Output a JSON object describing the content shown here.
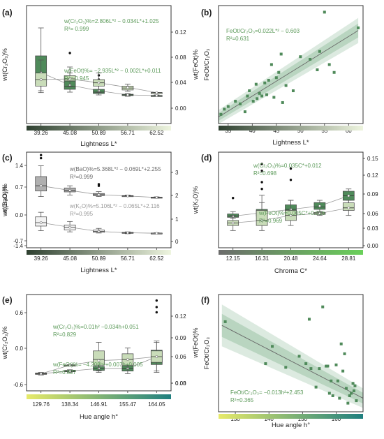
{
  "colors": {
    "dark_green": "#4f8a5a",
    "light_green": "#c9dcb9",
    "grey_box": "#b0b0b0",
    "white_box": "#f2f2f2",
    "band": "#9cc2a5",
    "grad_dark": "#2e4030",
    "grad_light": "#eef5df",
    "grad_green": "#6ad05a",
    "grad_yellow": "#e7ea6a",
    "grad_teal": "#1f7f7f",
    "text_green": "#5c9a5a",
    "text_grey": "#6a6a6a"
  },
  "chart_data": [
    {
      "panel": "(a)",
      "type": "box",
      "categories": [
        "39.26",
        "45.08",
        "50.89",
        "56.71",
        "62.52"
      ],
      "xlabel": "Lightness L*",
      "ylabel_left": "wt(Cr₂O₃)%",
      "ylabel_right": "wt(FeOt)%",
      "yticks_right": [
        "0.12",
        "0.08",
        "0.04",
        "0.00"
      ],
      "colorbar": "dark-to-light",
      "annotations": [
        {
          "line1": "w(Cr₂O₃)%=2.806L*² − 0.034L*+1.025",
          "line2": "R²= 0.999"
        },
        {
          "line1": "w(FeOt)%= −2.935L*² − 0.002L*+0.011",
          "line2": "R²= 0.945"
        }
      ],
      "series": [
        {
          "name": "Cr2O3",
          "color": "dark_green",
          "boxes": [
            [
              0.05,
              0.1,
              0.17,
              0.3,
              0.5
            ],
            [
              0.04,
              0.06,
              0.08,
              0.12,
              0.22
            ],
            [
              0.02,
              0.03,
              0.04,
              0.06,
              0.09
            ],
            [
              0.01,
              0.015,
              0.02,
              0.025,
              0.03
            ],
            [
              0.01,
              0.012,
              0.014,
              0.016,
              0.02
            ]
          ],
          "means": [
            0.18,
            0.09,
            0.05,
            0.02,
            0.015
          ],
          "outliers": [
            [
              1,
              0.32
            ],
            [
              2,
              0.16
            ],
            [
              2,
              0.13
            ]
          ]
        },
        {
          "name": "FeOt",
          "color": "light_green",
          "boxes": [
            [
              0.02,
              0.03,
              0.04,
              0.05,
              0.07
            ],
            [
              0.03,
              0.038,
              0.041,
              0.046,
              0.05
            ],
            [
              0.02,
              0.03,
              0.035,
              0.04,
              0.05
            ],
            [
              0.022,
              0.024,
              0.027,
              0.03,
              0.033
            ],
            [
              0.019,
              0.019,
              0.02,
              0.02,
              0.02
            ]
          ],
          "means": [
            0.04,
            0.041,
            0.035,
            0.028,
            0.02
          ],
          "outliers": []
        }
      ]
    },
    {
      "panel": "(b)",
      "type": "scatter",
      "xlabel": "Lightness L*",
      "ylabel": "FeOt/Cr₂O₃",
      "xticks": [
        "35",
        "40",
        "45",
        "50",
        "55",
        "60"
      ],
      "annotation": {
        "line1": "FeOt/Cr₂O₃=0.022L*² − 0.603",
        "line2": "R²=0.631"
      },
      "x": [
        33.5,
        34.2,
        35.0,
        36.5,
        37.5,
        38.5,
        39.0,
        39.4,
        40.2,
        40.8,
        41.0,
        41.5,
        42.0,
        42.6,
        43.0,
        43.4,
        44.0,
        44.5,
        45.0,
        45.5,
        46.0,
        46.3,
        47.0,
        48.5,
        50.0,
        52.0,
        53.5,
        54.0,
        55.0,
        56.0,
        57.0,
        62.0
      ],
      "y": [
        0.12,
        0.16,
        0.18,
        0.22,
        0.2,
        0.14,
        0.26,
        0.3,
        0.22,
        0.35,
        0.24,
        0.28,
        0.26,
        0.36,
        0.27,
        0.38,
        0.5,
        0.25,
        0.4,
        0.44,
        0.58,
        0.21,
        0.34,
        0.3,
        0.56,
        0.54,
        0.46,
        0.6,
        0.9,
        0.5,
        0.44,
        0.78
      ],
      "fit": [
        [
          33.0,
          0.1
        ],
        [
          62.0,
          0.76
        ]
      ],
      "xlim": [
        33,
        63
      ],
      "ylim": [
        0.05,
        0.95
      ]
    },
    {
      "panel": "(c)",
      "type": "box",
      "categories": [
        "39.26",
        "45.08",
        "50.89",
        "56.71",
        "62.52"
      ],
      "xlabel": "Lightness L*",
      "ylabel_left": "wt(BaO)%",
      "ylabel_right": "wt(K₂O)%",
      "yticks_left": [
        "1.4",
        "0.7",
        "0.0",
        "-0.7",
        "-1.4"
      ],
      "yticks_right": [
        "3",
        "2",
        "1",
        "0"
      ],
      "colorbar": "dark-to-light",
      "annotations": [
        {
          "line1": "w(BaO)%=5.368L*² − 0.069L*+2.255",
          "line2": "R²=0.999"
        },
        {
          "line1": "w(K₂O)%=5.106L*² − 0.065L*+2.116",
          "line2": "R²=0.995"
        }
      ],
      "series": [
        {
          "name": "BaO",
          "color": "grey_box",
          "boxes": [
            [
              0.1,
              0.28,
              0.45,
              0.75,
              1.1
            ],
            [
              0.15,
              0.25,
              0.3,
              0.38,
              0.45
            ],
            [
              0.1,
              0.13,
              0.16,
              0.2,
              0.26
            ],
            [
              0.1,
              0.11,
              0.12,
              0.13,
              0.15
            ],
            [
              0.05,
              0.06,
              0.07,
              0.08,
              0.09
            ]
          ],
          "means": [
            0.45,
            0.3,
            0.16,
            0.12,
            0.07
          ],
          "outliers": [
            [
              0,
              1.45
            ],
            [
              0,
              1.35
            ],
            [
              2,
              0.5
            ],
            [
              2,
              0.45
            ]
          ]
        },
        {
          "name": "K2O",
          "color": "white_box",
          "boxes": [
            [
              0.15,
              0.35,
              0.5,
              0.75,
              0.95
            ],
            [
              0.1,
              0.18,
              0.3,
              0.4,
              0.55
            ],
            [
              0.05,
              0.08,
              0.12,
              0.18,
              0.25
            ],
            [
              0.02,
              0.04,
              0.06,
              0.08,
              0.1
            ],
            [
              0.02,
              0.03,
              0.04,
              0.05,
              0.06
            ]
          ],
          "means": [
            0.5,
            0.3,
            0.12,
            0.06,
            0.04
          ],
          "outliers": []
        }
      ]
    },
    {
      "panel": "(d)",
      "type": "box",
      "categories": [
        "12.15",
        "16.31",
        "20.48",
        "24.64",
        "28.81"
      ],
      "xlabel": "Chroma C*",
      "ylabel_left": "wt(Cr₂O₃)%",
      "ylabel_right": "wt(FeOt)%",
      "yticks_right": [
        "0.15",
        "0.12",
        "0.09",
        "0.06",
        "0.03",
        "0.00"
      ],
      "colorbar": "grey-to-green",
      "annotations": [
        {
          "line1": "w(Cr₂O₃)%=0.035C*+0.012",
          "line2": "R²=0.698"
        },
        {
          "line1": "w(FeOt)%=0.005C*+0.016",
          "line2": "R²=0.969"
        }
      ],
      "series": [
        {
          "name": "Cr2O3",
          "color": "dark_green",
          "boxes": [
            [
              0.02,
              0.025,
              0.03,
              0.04,
              0.05
            ],
            [
              0.02,
              0.03,
              0.04,
              0.06,
              0.09
            ],
            [
              0.03,
              0.04,
              0.06,
              0.08,
              0.1
            ],
            [
              0.05,
              0.06,
              0.07,
              0.09,
              0.1
            ],
            [
              0.08,
              0.1,
              0.12,
              0.14,
              0.15
            ]
          ],
          "means": [
            0.03,
            0.045,
            0.06,
            0.075,
            0.12
          ],
          "outliers": [
            [
              0,
              0.11
            ],
            [
              1,
              0.26
            ],
            [
              1,
              0.23
            ],
            [
              1,
              0.18
            ],
            [
              1,
              0.15
            ],
            [
              2,
              0.24
            ],
            [
              2,
              0.19
            ]
          ]
        },
        {
          "name": "FeOt",
          "color": "light_green",
          "boxes": [
            [
              0.01,
              0.02,
              0.025,
              0.03,
              0.04
            ],
            [
              0.01,
              0.02,
              0.03,
              0.05,
              0.08
            ],
            [
              0.02,
              0.03,
              0.04,
              0.05,
              0.07
            ],
            [
              0.04,
              0.042,
              0.044,
              0.046,
              0.048
            ],
            [
              0.04,
              0.05,
              0.055,
              0.065,
              0.07
            ]
          ],
          "means": [
            0.025,
            0.03,
            0.04,
            0.044,
            0.055
          ],
          "outliers": []
        }
      ]
    },
    {
      "panel": "(e)",
      "type": "box",
      "categories": [
        "129.76",
        "138.34",
        "146.91",
        "155.47",
        "164.05"
      ],
      "xlabel": "Hue angle h°",
      "ylabel_left": "wt(Cr₂O₃)%",
      "ylabel_right": "wt(FeOt)%",
      "yticks_left": [
        "0.6",
        "0.0",
        "-0.6"
      ],
      "yticks_right": [
        "0.12",
        "0.09",
        "0.06",
        "0.03",
        "0.00"
      ],
      "colorbar": "yellow-to-teal",
      "annotations": [
        {
          "line1": "w(Cr₂O₃)%=0.01h² −0.034h+0.051",
          "line2": "R²=0.829"
        },
        {
          "line1": "w(FeOt)%= −4.208h²+0.007h+0.005",
          "line2": "R²=0.827"
        }
      ],
      "series": [
        {
          "name": "Cr2O3",
          "color": "dark_green",
          "boxes": [
            [
              0.0,
              0.005,
              0.01,
              0.015,
              0.02
            ],
            [
              0.02,
              0.025,
              0.03,
              0.035,
              0.04
            ],
            [
              0.02,
              0.035,
              0.05,
              0.065,
              0.08
            ],
            [
              0.01,
              0.03,
              0.05,
              0.07,
              0.09
            ],
            [
              0.02,
              0.08,
              0.12,
              0.19,
              0.26
            ]
          ],
          "means": [
            0.01,
            0.03,
            0.05,
            0.05,
            0.14
          ],
          "outliers": [
            [
              4,
              0.48
            ],
            [
              4,
              0.52
            ],
            [
              4,
              0.57
            ]
          ]
        },
        {
          "name": "FeOt",
          "color": "light_green",
          "boxes": [
            [
              0.005,
              0.005,
              0.005,
              0.006,
              0.006
            ],
            [
              0.019,
              0.019,
              0.02,
              0.02,
              0.021
            ],
            [
              0.01,
              0.02,
              0.03,
              0.045,
              0.06
            ],
            [
              0.01,
              0.02,
              0.03,
              0.04,
              0.05
            ],
            [
              0.01,
              0.025,
              0.035,
              0.045,
              0.06
            ]
          ],
          "means": [
            0.005,
            0.02,
            0.028,
            0.03,
            0.035
          ],
          "outliers": []
        }
      ]
    },
    {
      "panel": "(f)",
      "type": "scatter",
      "xlabel": "Hue angle h°",
      "ylabel": "FeOt/Cr₂O₃",
      "xticks": [
        "130",
        "140",
        "150",
        "160"
      ],
      "annotation": {
        "line1": "FeOt/Cr₂O₃= −0.013h²+2.453",
        "line2": "R²=0.365"
      },
      "x": [
        127,
        139,
        141,
        145,
        149,
        151,
        152,
        152.5,
        154,
        155,
        156,
        157,
        157.5,
        158,
        158.5,
        159,
        160,
        160.5,
        161,
        161.5,
        162,
        162.5,
        163,
        163.5,
        164,
        164.5,
        165,
        165.3,
        165.6,
        166
      ],
      "y": [
        0.78,
        0.44,
        0.58,
        0.41,
        0.5,
        0.44,
        0.8,
        0.4,
        0.25,
        0.4,
        0.9,
        0.42,
        0.42,
        0.2,
        0.3,
        0.18,
        0.43,
        0.3,
        0.16,
        0.6,
        0.38,
        0.52,
        0.24,
        0.12,
        0.18,
        0.2,
        0.28,
        0.22,
        0.26,
        0.14
      ],
      "fit": [
        [
          126,
          0.75
        ],
        [
          168,
          0.16
        ]
      ],
      "xlim": [
        125,
        168
      ],
      "ylim": [
        0.05,
        1.0
      ]
    }
  ]
}
